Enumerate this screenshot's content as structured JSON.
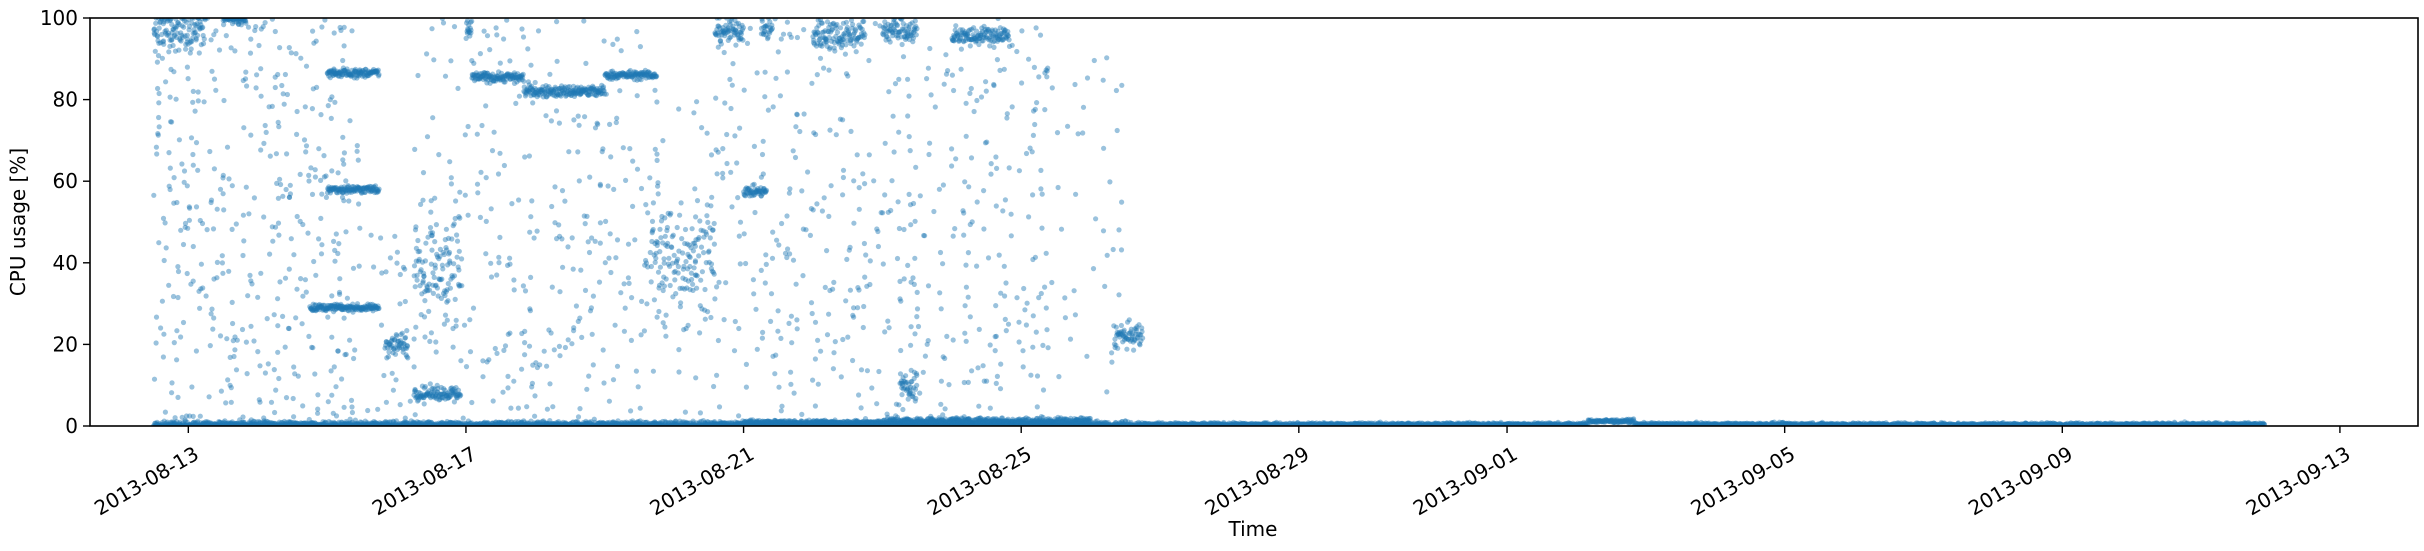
{
  "chart_data": {
    "type": "scatter",
    "title": "",
    "xlabel": "Time",
    "ylabel": "CPU usage [%]",
    "xlim": [
      "2013-08-11T14:00",
      "2013-09-14T03:00"
    ],
    "ylim": [
      0,
      100
    ],
    "grid": false,
    "marker_color": "#1f77b4",
    "marker_alpha": 0.45,
    "x_ticks": [
      "2013-08-13",
      "2013-08-17",
      "2013-08-21",
      "2013-08-25",
      "2013-08-29",
      "2013-09-01",
      "2013-09-05",
      "2013-09-09",
      "2013-09-13"
    ],
    "y_ticks": [
      0,
      20,
      40,
      60,
      80,
      100
    ],
    "dense_segments": [
      {
        "start": "2013-08-12T12:00",
        "end": "2013-08-13T06:00",
        "value": 97,
        "spread": 2.5
      },
      {
        "start": "2013-08-13T12:00",
        "end": "2013-08-13T20:00",
        "value": 99.5,
        "spread": 0.6
      },
      {
        "start": "2013-08-15T00:00",
        "end": "2013-08-15T18:00",
        "value": 86.5,
        "spread": 0.5
      },
      {
        "start": "2013-08-15T00:00",
        "end": "2013-08-15T18:00",
        "value": 58,
        "spread": 0.5
      },
      {
        "start": "2013-08-14T18:00",
        "end": "2013-08-15T18:00",
        "value": 29,
        "spread": 0.4
      },
      {
        "start": "2013-08-15T20:00",
        "end": "2013-08-16T04:00",
        "value": 20,
        "spread": 1.5
      },
      {
        "start": "2013-08-16T06:00",
        "end": "2013-08-16T22:00",
        "value": 8,
        "spread": 0.8
      },
      {
        "start": "2013-08-16T06:00",
        "end": "2013-08-16T22:00",
        "value": 38,
        "spread": 7
      },
      {
        "start": "2013-08-17T00:00",
        "end": "2013-08-17T02:00",
        "value": 97,
        "spread": 1.5
      },
      {
        "start": "2013-08-17T02:00",
        "end": "2013-08-17T20:00",
        "value": 85.5,
        "spread": 0.6
      },
      {
        "start": "2013-08-17T20:00",
        "end": "2013-08-19T00:00",
        "value": 82,
        "spread": 0.7
      },
      {
        "start": "2013-08-19T00:00",
        "end": "2013-08-19T18:00",
        "value": 86,
        "spread": 0.5
      },
      {
        "start": "2013-08-19T16:00",
        "end": "2013-08-20T14:00",
        "value": 42,
        "spread": 8
      },
      {
        "start": "2013-08-20T14:00",
        "end": "2013-08-21T00:00",
        "value": 97,
        "spread": 1.5
      },
      {
        "start": "2013-08-21T00:00",
        "end": "2013-08-21T08:00",
        "value": 57.5,
        "spread": 0.6
      },
      {
        "start": "2013-08-21T06:00",
        "end": "2013-08-21T10:00",
        "value": 97,
        "spread": 1.5
      },
      {
        "start": "2013-08-22T00:00",
        "end": "2013-08-22T18:00",
        "value": 96,
        "spread": 2
      },
      {
        "start": "2013-08-23T00:00",
        "end": "2013-08-23T12:00",
        "value": 97,
        "spread": 1.5
      },
      {
        "start": "2013-08-23T06:00",
        "end": "2013-08-23T12:00",
        "value": 10,
        "spread": 2
      },
      {
        "start": "2013-08-24T00:00",
        "end": "2013-08-24T20:00",
        "value": 95.5,
        "spread": 1.2
      },
      {
        "start": "2013-08-26T08:00",
        "end": "2013-08-26T18:00",
        "value": 22,
        "spread": 1.5
      },
      {
        "start": "2013-08-21T00:00",
        "end": "2013-08-23T00:00",
        "value": 0.8,
        "spread": 0.3
      },
      {
        "start": "2013-08-23T00:00",
        "end": "2013-08-26T00:00",
        "value": 1.2,
        "spread": 0.4
      },
      {
        "start": "2013-08-12T12:00",
        "end": "2013-08-26T18:00",
        "value": 0.4,
        "spread": 0.4
      },
      {
        "start": "2013-08-26T18:00",
        "end": "2013-09-02T04:00",
        "value": 0.4,
        "spread": 0.2
      },
      {
        "start": "2013-09-02T04:00",
        "end": "2013-09-02T20:00",
        "value": 1.2,
        "spread": 0.2
      },
      {
        "start": "2013-09-02T20:00",
        "end": "2013-09-11T22:00",
        "value": 0.4,
        "spread": 0.2
      }
    ],
    "scattered_regions": [
      {
        "start": "2013-08-12T12:00",
        "end": "2013-08-15T12:00",
        "min": 0,
        "max": 100,
        "count": 420
      },
      {
        "start": "2013-08-15T12:00",
        "end": "2013-08-16T06:00",
        "min": 0,
        "max": 50,
        "count": 30
      },
      {
        "start": "2013-08-16T06:00",
        "end": "2013-08-19T18:00",
        "min": 0,
        "max": 100,
        "count": 330
      },
      {
        "start": "2013-08-19T18:00",
        "end": "2013-08-20T14:00",
        "min": 0,
        "max": 80,
        "count": 40
      },
      {
        "start": "2013-08-20T14:00",
        "end": "2013-08-25T12:00",
        "min": 0,
        "max": 100,
        "count": 480
      },
      {
        "start": "2013-08-25T12:00",
        "end": "2013-08-26T14:00",
        "min": 0,
        "max": 100,
        "count": 40
      }
    ]
  }
}
